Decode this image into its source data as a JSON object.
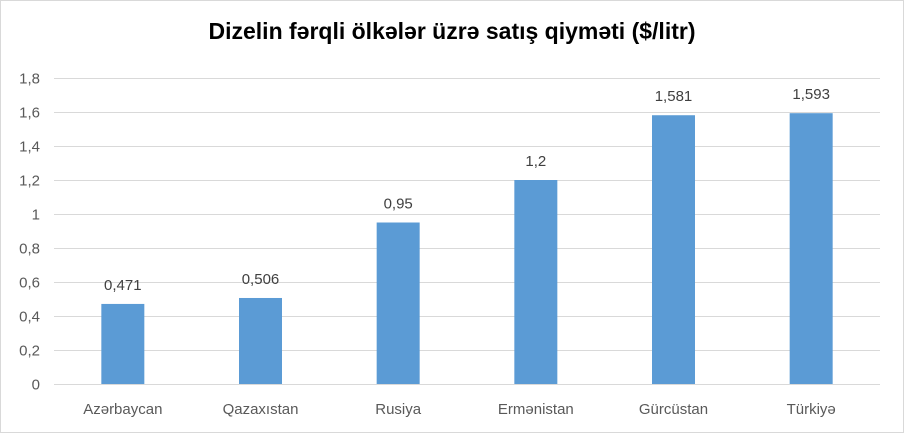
{
  "chart_data": {
    "type": "bar",
    "title": "Dizelin fərqli ölkələr üzrə satış qiyməti ($/litr)",
    "categories": [
      "Azərbaycan",
      "Qazaxıstan",
      "Rusiya",
      "Ermənistan",
      "Gürcüstan",
      "Türkiyə"
    ],
    "values": [
      0.471,
      0.506,
      0.95,
      1.2,
      1.581,
      1.593
    ],
    "value_labels": [
      "0,471",
      "0,506",
      "0,95",
      "1,2",
      "1,581",
      "1,593"
    ],
    "y_ticks": [
      0,
      0.2,
      0.4,
      0.6,
      0.8,
      1,
      1.2,
      1.4,
      1.6,
      1.8
    ],
    "y_tick_labels": [
      "0",
      "0,2",
      "0,4",
      "0,6",
      "0,8",
      "1",
      "1,2",
      "1,4",
      "1,6",
      "1,8"
    ],
    "ylim": [
      0,
      1.8
    ],
    "xlabel": "",
    "ylabel": "",
    "grid": true,
    "bar_color": "#5b9bd5",
    "grid_color": "#d9d9d9"
  }
}
